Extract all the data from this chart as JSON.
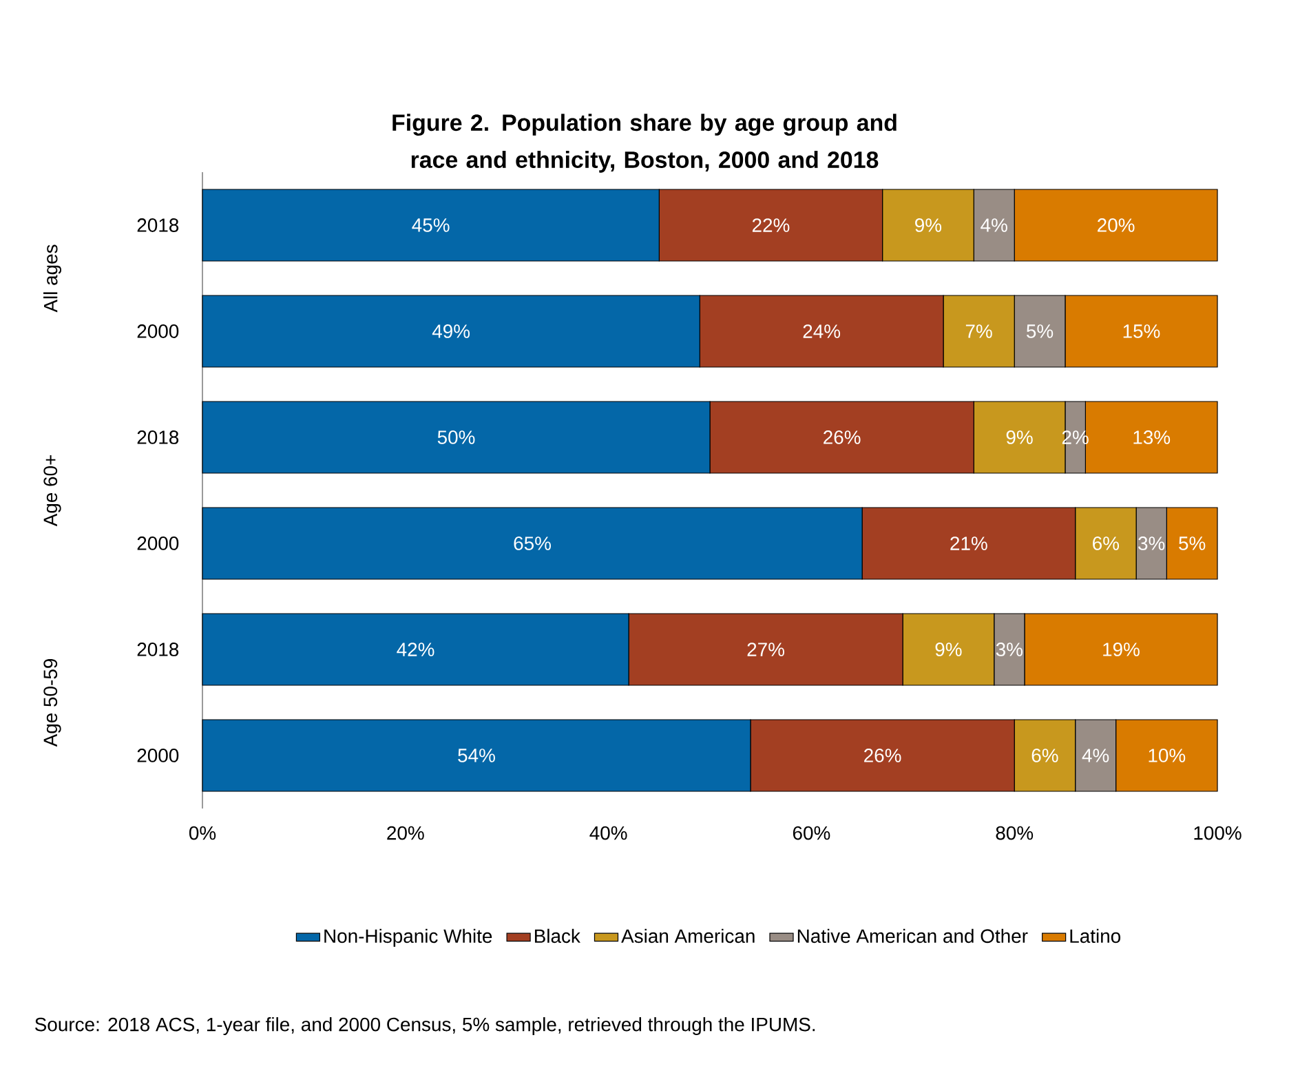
{
  "chart_data": {
    "type": "bar",
    "orientation": "horizontal",
    "stacked": true,
    "title": "Figure 2. Population share by age group and race and ethnicity, Boston, 2000 and 2018",
    "categories": [
      "2018",
      "2000",
      "2018",
      "2000",
      "2018",
      "2000"
    ],
    "series": [
      {
        "name": "Non-Hispanic White",
        "color": "#0467a8",
        "values": [
          45,
          49,
          50,
          65,
          42,
          54
        ],
        "value_labels": [
          "45%",
          "49%",
          "50%",
          "65%",
          "42%",
          "54%"
        ]
      },
      {
        "name": "Black",
        "color": "#a33f22",
        "values": [
          22,
          24,
          26,
          21,
          27,
          26
        ],
        "value_labels": [
          "22%",
          "24%",
          "26%",
          "21%",
          "27%",
          "26%"
        ]
      },
      {
        "name": "Asian American",
        "color": "#c8981e",
        "values": [
          9,
          7,
          9,
          6,
          9,
          6
        ],
        "value_labels": [
          "9%",
          "7%",
          "9%",
          "6%",
          "9%",
          "6%"
        ]
      },
      {
        "name": "Native American and Other",
        "color": "#998d85",
        "values": [
          4,
          5,
          2,
          3,
          3,
          4
        ],
        "value_labels": [
          "4%",
          "5%",
          "2%",
          "3%",
          "3%",
          "4%"
        ]
      },
      {
        "name": "Latino",
        "color": "#d97b00",
        "values": [
          20,
          15,
          13,
          5,
          19,
          10
        ],
        "value_labels": [
          "20%",
          "15%",
          "13%",
          "5%",
          "19%",
          "10%"
        ]
      }
    ],
    "xlim": [
      0,
      100
    ],
    "xticks": [
      {
        "value": 0,
        "label": "0%"
      },
      {
        "value": 20,
        "label": "20%"
      },
      {
        "value": 40,
        "label": "40%"
      },
      {
        "value": 60,
        "label": "60%"
      },
      {
        "value": 80,
        "label": "80%"
      },
      {
        "value": 100,
        "label": "100%"
      }
    ],
    "legend": "bottom",
    "annotations": [
      "All ages",
      "Age 60+",
      "Age 50-59",
      "Source: 2018 ACS, 1-year file, and 2000 Census, 5% sample, retrieved through the IPUMS."
    ]
  }
}
